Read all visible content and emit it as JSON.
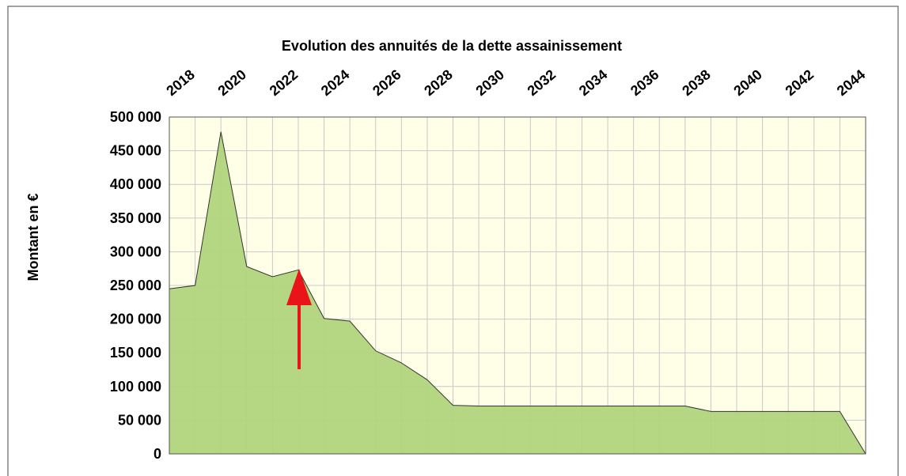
{
  "chart_data": {
    "type": "area",
    "title": "Evolution des annuités de la dette assainissement",
    "y_label": "Montant en €",
    "x": [
      2017,
      2018,
      2019,
      2020,
      2021,
      2022,
      2023,
      2024,
      2025,
      2026,
      2027,
      2028,
      2029,
      2030,
      2031,
      2032,
      2033,
      2034,
      2035,
      2036,
      2037,
      2038,
      2039,
      2040,
      2041,
      2042,
      2043,
      2044
    ],
    "values": [
      245000,
      250000,
      478000,
      278000,
      263000,
      273000,
      201000,
      197000,
      153000,
      135000,
      110000,
      72000,
      71000,
      71000,
      71000,
      71000,
      71000,
      71000,
      71000,
      71000,
      71000,
      63000,
      63000,
      63000,
      63000,
      63000,
      63000,
      0
    ],
    "color": "#b1d57e",
    "xlim": [
      2017,
      2044
    ],
    "xticks": [
      2018,
      2020,
      2022,
      2024,
      2026,
      2028,
      2030,
      2032,
      2034,
      2036,
      2038,
      2040,
      2042,
      2044
    ],
    "ylim": [
      0,
      500000
    ],
    "yticks": [
      0,
      {
        "value": 50000,
        "label": "50 000"
      },
      {
        "value": 100000,
        "label": "100 000"
      },
      {
        "value": 150000,
        "label": "150 000"
      },
      {
        "value": 200000,
        "label": "200 000"
      },
      {
        "value": 250000,
        "label": "250 000"
      },
      {
        "value": 300000,
        "label": "300 000"
      },
      {
        "value": 350000,
        "label": "350 000"
      },
      {
        "value": 400000,
        "label": "400 000"
      },
      {
        "value": 450000,
        "label": "450 000"
      },
      {
        "value": 500000,
        "label": "500 000"
      }
    ],
    "grid": true
  }
}
